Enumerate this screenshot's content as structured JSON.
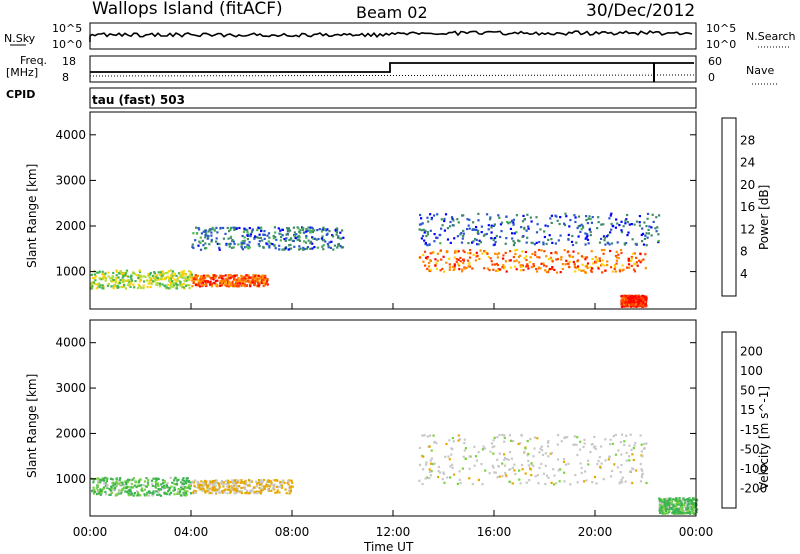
{
  "header": {
    "station": "Wallops Island (fitACF)",
    "beam": "Beam 02",
    "date": "30/Dec/2012"
  },
  "panels": {
    "nsky_label": "N.Sky",
    "nsearch_label": "N.Search",
    "nsky_ticks": [
      "10^5",
      "10^0"
    ],
    "nsearch_ticks": [
      "10^5",
      "10^0"
    ],
    "freq_label": "Freq.",
    "freq_unit": "[MHz]",
    "freq_ticks": [
      "18",
      "8"
    ],
    "nave_label": "Nave",
    "nave_ticks": [
      "60",
      "0"
    ],
    "cpid_label": "CPID",
    "cpid_value": "tau (fast) 503"
  },
  "chart_data": [
    {
      "type": "heatmap",
      "title": "",
      "ylabel": "Slant Range [km]",
      "xlabel": "Time UT",
      "x_ticks": [
        "00:00",
        "04:00",
        "08:00",
        "12:00",
        "16:00",
        "20:00",
        "00:00"
      ],
      "y_ticks": [
        "1000",
        "2000",
        "3000",
        "4000"
      ],
      "ylim": [
        180,
        4500
      ],
      "colorbar_label": "Power [dB]",
      "colorbar_ticks": [
        "28",
        "24",
        "20",
        "16",
        "12",
        "8",
        "4"
      ],
      "colors": [
        "#0000ff",
        "#2a55cc",
        "#3c8c64",
        "#46b450",
        "#b4dc3c",
        "#ffd200",
        "#ff8c00",
        "#ff4600",
        "#ff0000"
      ],
      "regions": [
        {
          "x": [
            0.0,
            4.0
          ],
          "range": [
            650,
            1050
          ],
          "level": 0.5
        },
        {
          "x": [
            4.0,
            7.0
          ],
          "range": [
            700,
            950
          ],
          "level": 0.85
        },
        {
          "x": [
            4.0,
            10.0
          ],
          "range": [
            1500,
            2000
          ],
          "level": 0.2
        },
        {
          "x": [
            13.0,
            22.0
          ],
          "range": [
            1000,
            1500
          ],
          "level": 0.8
        },
        {
          "x": [
            13.0,
            22.5
          ],
          "range": [
            1600,
            2300
          ],
          "level": 0.15
        },
        {
          "x": [
            21.0,
            22.0
          ],
          "range": [
            250,
            500
          ],
          "level": 0.95
        }
      ]
    },
    {
      "type": "heatmap",
      "title": "",
      "ylabel": "Slant Range [km]",
      "xlabel": "Time UT",
      "x_ticks": [
        "00:00",
        "04:00",
        "08:00",
        "12:00",
        "16:00",
        "20:00",
        "00:00"
      ],
      "y_ticks": [
        "1000",
        "2000",
        "3000",
        "4000"
      ],
      "ylim": [
        180,
        4500
      ],
      "colorbar_label": "Velocity [m s^-1]",
      "colorbar_ticks": [
        "200",
        "100",
        "50",
        "15",
        "-15",
        "-50",
        "-100",
        "-200"
      ],
      "colors": [
        "#1e3cc8",
        "#2e7d52",
        "#3cb450",
        "#78d23c",
        "#c8c8c8",
        "#e6a800",
        "#ff8c00",
        "#ff4600",
        "#ff0000"
      ],
      "regions": [
        {
          "x": [
            0.0,
            4.0
          ],
          "range": [
            650,
            1050
          ],
          "velocity": 30
        },
        {
          "x": [
            4.0,
            8.0
          ],
          "range": [
            700,
            1000
          ],
          "velocity": -20
        },
        {
          "x": [
            13.0,
            22.0
          ],
          "range": [
            900,
            2000
          ],
          "velocity": 0
        },
        {
          "x": [
            22.5,
            24.0
          ],
          "range": [
            250,
            600
          ],
          "velocity": 30
        }
      ]
    }
  ]
}
